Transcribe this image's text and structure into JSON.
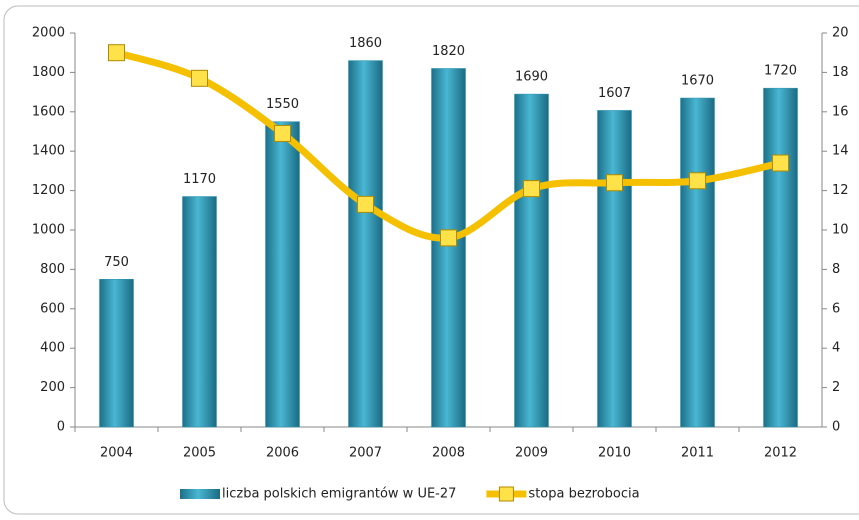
{
  "chart_data": {
    "type": "bar-line",
    "categories": [
      "2004",
      "2005",
      "2006",
      "2007",
      "2008",
      "2009",
      "2010",
      "2011",
      "2012"
    ],
    "series": [
      {
        "name": "liczba polskich emigrantów w UE-27",
        "color": "#2a93b0",
        "type": "bar",
        "values": [
          750,
          1170,
          1550,
          1860,
          1820,
          1690,
          1607,
          1670,
          1720
        ]
      },
      {
        "name": "stopa bezrobocia",
        "color": "#f5c000",
        "type": "line",
        "axis": "y2",
        "values": [
          19.0,
          17.7,
          14.9,
          11.3,
          9.6,
          12.1,
          12.4,
          12.5,
          13.4
        ]
      }
    ],
    "ylim": [
      0,
      2000
    ],
    "yticks": [
      0,
      200,
      400,
      600,
      800,
      1000,
      1200,
      1400,
      1600,
      1800,
      2000
    ],
    "y2lim": [
      0,
      20
    ],
    "y2ticks": [
      0,
      2,
      4,
      6,
      8,
      10,
      12,
      14,
      16,
      18,
      20
    ],
    "legend": "bottom"
  }
}
